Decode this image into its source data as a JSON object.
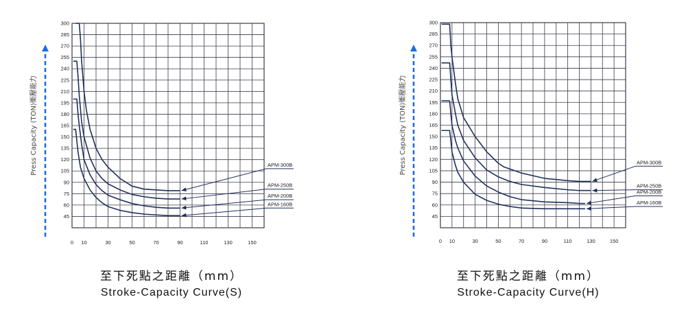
{
  "chart_data": [
    {
      "type": "line",
      "title": "Stroke-Capacity Curve(S)",
      "subtitle": "至下死點之距離（mm）",
      "ylabel": "Press Capacity (TON)衝壓能力",
      "xlabel": "",
      "x_ticks": [
        0,
        10,
        30,
        50,
        70,
        90,
        110,
        130,
        150
      ],
      "y_ticks": [
        300,
        285,
        270,
        255,
        240,
        225,
        210,
        195,
        180,
        165,
        150,
        135,
        120,
        105,
        90,
        75,
        60,
        45
      ],
      "xlim": [
        0,
        160
      ],
      "ylim": [
        30,
        300
      ],
      "grid": true,
      "series": [
        {
          "name": "APM-300B",
          "x": [
            3,
            6,
            7,
            8,
            10,
            12,
            15,
            20,
            25,
            30,
            40,
            50,
            60,
            70,
            80,
            90
          ],
          "y": [
            300,
            300,
            280,
            250,
            210,
            185,
            160,
            135,
            120,
            110,
            95,
            85,
            81,
            80,
            79,
            79
          ],
          "label_y": 108
        },
        {
          "name": "APM-250B",
          "x": [
            1,
            4,
            5,
            6,
            8,
            10,
            15,
            20,
            25,
            30,
            40,
            50,
            60,
            70,
            80,
            90
          ],
          "y": [
            250,
            250,
            230,
            205,
            170,
            150,
            122,
            105,
            95,
            88,
            80,
            74,
            71,
            69,
            68,
            68
          ],
          "label_y": 81
        },
        {
          "name": "APM-200B",
          "x": [
            1,
            4,
            5,
            6,
            8,
            10,
            15,
            20,
            25,
            30,
            40,
            50,
            60,
            70,
            80,
            90
          ],
          "y": [
            200,
            200,
            180,
            165,
            140,
            120,
            100,
            87,
            79,
            73,
            67,
            62,
            59,
            57,
            56,
            56
          ],
          "label_y": 67
        },
        {
          "name": "APM-160B",
          "x": [
            1,
            3,
            4,
            5,
            7,
            10,
            15,
            20,
            25,
            30,
            40,
            50,
            60,
            70,
            80,
            90
          ],
          "y": [
            160,
            160,
            145,
            130,
            110,
            95,
            80,
            70,
            63,
            58,
            53,
            50,
            48,
            47,
            46,
            46
          ],
          "label_y": 56
        }
      ]
    },
    {
      "type": "line",
      "title": "Stroke-Capacity Curve(H)",
      "subtitle": "至下死點之距離（mm）",
      "ylabel": "Press Capacity (TON)衝壓能力",
      "xlabel": "",
      "x_ticks": [
        0,
        10,
        30,
        50,
        70,
        90,
        110,
        130,
        150
      ],
      "y_ticks": [
        300,
        285,
        270,
        255,
        240,
        225,
        210,
        195,
        180,
        165,
        150,
        135,
        120,
        105,
        90,
        75,
        60,
        45
      ],
      "xlim": [
        0,
        160
      ],
      "ylim": [
        30,
        300
      ],
      "grid": true,
      "series": [
        {
          "name": "APM-300B",
          "x": [
            1,
            8,
            9,
            10,
            13,
            15,
            20,
            30,
            40,
            50,
            55,
            70,
            90,
            110,
            120,
            130
          ],
          "y": [
            298,
            298,
            270,
            255,
            220,
            200,
            175,
            150,
            130,
            115,
            110,
            102,
            95,
            92,
            91,
            91
          ],
          "label_y": 111
        },
        {
          "name": "APM-250B",
          "x": [
            1,
            8,
            9,
            10,
            13,
            15,
            20,
            30,
            40,
            50,
            60,
            70,
            90,
            110,
            120,
            130
          ],
          "y": [
            247,
            247,
            225,
            205,
            180,
            165,
            145,
            122,
            106,
            97,
            91,
            87,
            83,
            80,
            79,
            79
          ],
          "label_y": 80
        },
        {
          "name": "APM-200B",
          "x": [
            1,
            8,
            9,
            10,
            13,
            15,
            20,
            30,
            40,
            50,
            60,
            70,
            90,
            110,
            120,
            125
          ],
          "y": [
            197,
            197,
            180,
            165,
            145,
            135,
            118,
            98,
            85,
            77,
            71,
            67,
            64,
            63,
            62,
            62
          ],
          "label_y": 72
        },
        {
          "name": "APM-160B",
          "x": [
            1,
            8,
            9,
            10,
            13,
            15,
            20,
            30,
            40,
            50,
            60,
            70,
            90,
            110,
            120,
            125
          ],
          "y": [
            158,
            158,
            145,
            130,
            112,
            103,
            90,
            74,
            66,
            61,
            58,
            56,
            55,
            55,
            55,
            55
          ],
          "label_y": 58
        }
      ]
    }
  ],
  "colors": {
    "curve": "#1f2f5c",
    "grid": "#3a3a4a",
    "arrow_axis": "#1a6ee0",
    "text": "#111111",
    "tick": "#222222"
  }
}
